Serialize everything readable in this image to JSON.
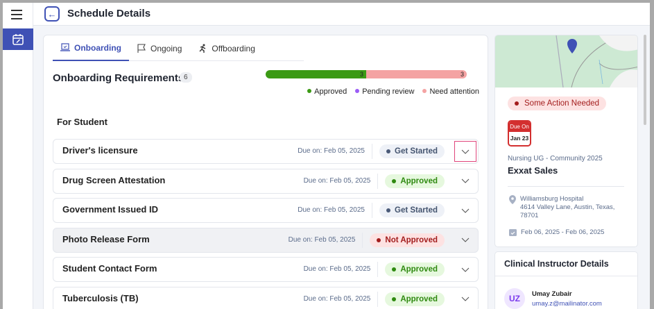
{
  "header": {
    "title": "Schedule Details"
  },
  "tabs": [
    {
      "label": "Onboarding",
      "icon": "laptop-check-icon",
      "active": true
    },
    {
      "label": "Ongoing",
      "icon": "flag-icon"
    },
    {
      "label": "Offboarding",
      "icon": "running-person-icon"
    }
  ],
  "requirements": {
    "title": "Onboarding Requirements",
    "count": "6",
    "progress": {
      "approved": 3,
      "pending": 0,
      "attention": 3,
      "approved_label": "3",
      "attention_label": "3"
    },
    "legend": [
      {
        "label": "Approved",
        "color": "#3b9a14"
      },
      {
        "label": "Pending review",
        "color": "#9b5cf6"
      },
      {
        "label": "Need attention",
        "color": "#f4a3a3"
      }
    ],
    "section": "For Student",
    "items": [
      {
        "name": "Driver's licensure",
        "due": "Due on: Feb 05, 2025",
        "status": "Get Started",
        "type": "started",
        "focused": true
      },
      {
        "name": "Drug Screen Attestation",
        "due": "Due on: Feb 05, 2025",
        "status": "Approved",
        "type": "approved"
      },
      {
        "name": "Government Issued ID",
        "due": "Due on: Feb 05, 2025",
        "status": "Get Started",
        "type": "started"
      },
      {
        "name": "Photo Release Form",
        "due": "Due on: Feb 05, 2025",
        "status": "Not Approved",
        "type": "rejected",
        "highlight": true
      },
      {
        "name": "Student Contact Form",
        "due": "Due on: Feb 05, 2025",
        "status": "Approved",
        "type": "approved"
      },
      {
        "name": "Tuberculosis (TB)",
        "due": "Due on: Feb 05, 2025",
        "status": "Approved",
        "type": "approved"
      }
    ]
  },
  "summary": {
    "status": "Some Action Needed",
    "due_label": "Due On",
    "due_date": "Jan 23",
    "program": "Nursing UG - Community 2025",
    "org": "Exxat Sales",
    "site": "Williamsburg Hospital",
    "address": "4614 Valley Lane, Austin, Texas, 78701",
    "dates": "Feb 06, 2025 - Feb 06, 2025"
  },
  "instructor": {
    "title": "Clinical Instructor Details",
    "initials": "UZ",
    "name": "Umay Zubair",
    "email": "umay.z@mailinator.com"
  },
  "colors": {
    "accent": "#3f51b5",
    "approved": "#3b9a14",
    "attention": "#f4a3a3"
  }
}
